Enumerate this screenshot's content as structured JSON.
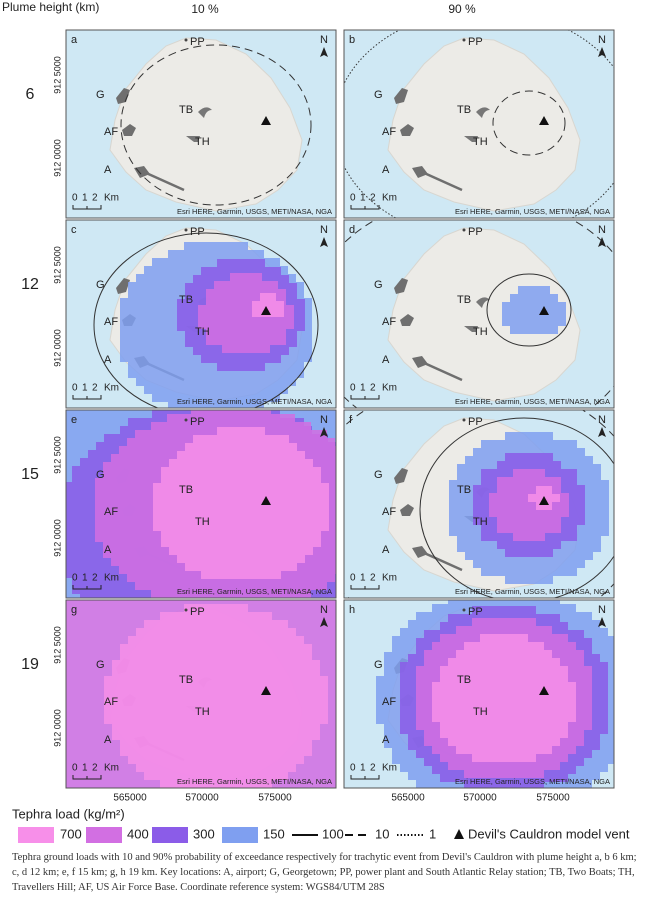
{
  "header": {
    "plume_height_label": "Plume height (km)",
    "columns": [
      "10 %",
      "90 %"
    ]
  },
  "rows": [
    6,
    12,
    15,
    19
  ],
  "panels": [
    {
      "letter": "a"
    },
    {
      "letter": "b"
    },
    {
      "letter": "c"
    },
    {
      "letter": "d"
    },
    {
      "letter": "e"
    },
    {
      "letter": "f"
    },
    {
      "letter": "g"
    },
    {
      "letter": "h"
    }
  ],
  "map_labels": {
    "PP": "PP",
    "N": "N",
    "G": "G",
    "AF": "AF",
    "A": "A",
    "TB": "TB",
    "TH": "TH",
    "scale": [
      "0",
      "1",
      "2"
    ],
    "scale_unit": "Km",
    "attribution": "Esri HERE, Garmin, USGS, METI/NASA, NGA"
  },
  "y_axis_labels": [
    "912 5000",
    "912 0000"
  ],
  "x_axis_labels": [
    "565000",
    "570000",
    "575000"
  ],
  "legend": {
    "title": "Tephra load (kg/m²)",
    "items": [
      {
        "label": "700",
        "color": "#f78fe9"
      },
      {
        "label": "400",
        "color": "#d26fe2"
      },
      {
        "label": "300",
        "color": "#8b5ce8"
      },
      {
        "label": "150",
        "color": "#7f9ff0"
      },
      {
        "label": "100",
        "line": "solid"
      },
      {
        "label": "10",
        "line": "dashed"
      },
      {
        "label": "1",
        "line": "dotted"
      },
      {
        "label": "Devil's Cauldron model vent",
        "marker": "triangle"
      }
    ]
  },
  "caption": "Tephra ground loads with 10 and 90% probability of exceedance respectively for trachytic event from Devil's Cauldron with plume height a, b 6 km; c, d 12 km; e, f 15 km; g, h 19 km. Key locations: A, airport; G, Georgetown; PP, power plant and South Atlantic Relay station; TB, Two Boats; TH, Travellers Hill; AF, US Air Force Base. Coordinate reference system: WGS84/UTM 28S"
}
